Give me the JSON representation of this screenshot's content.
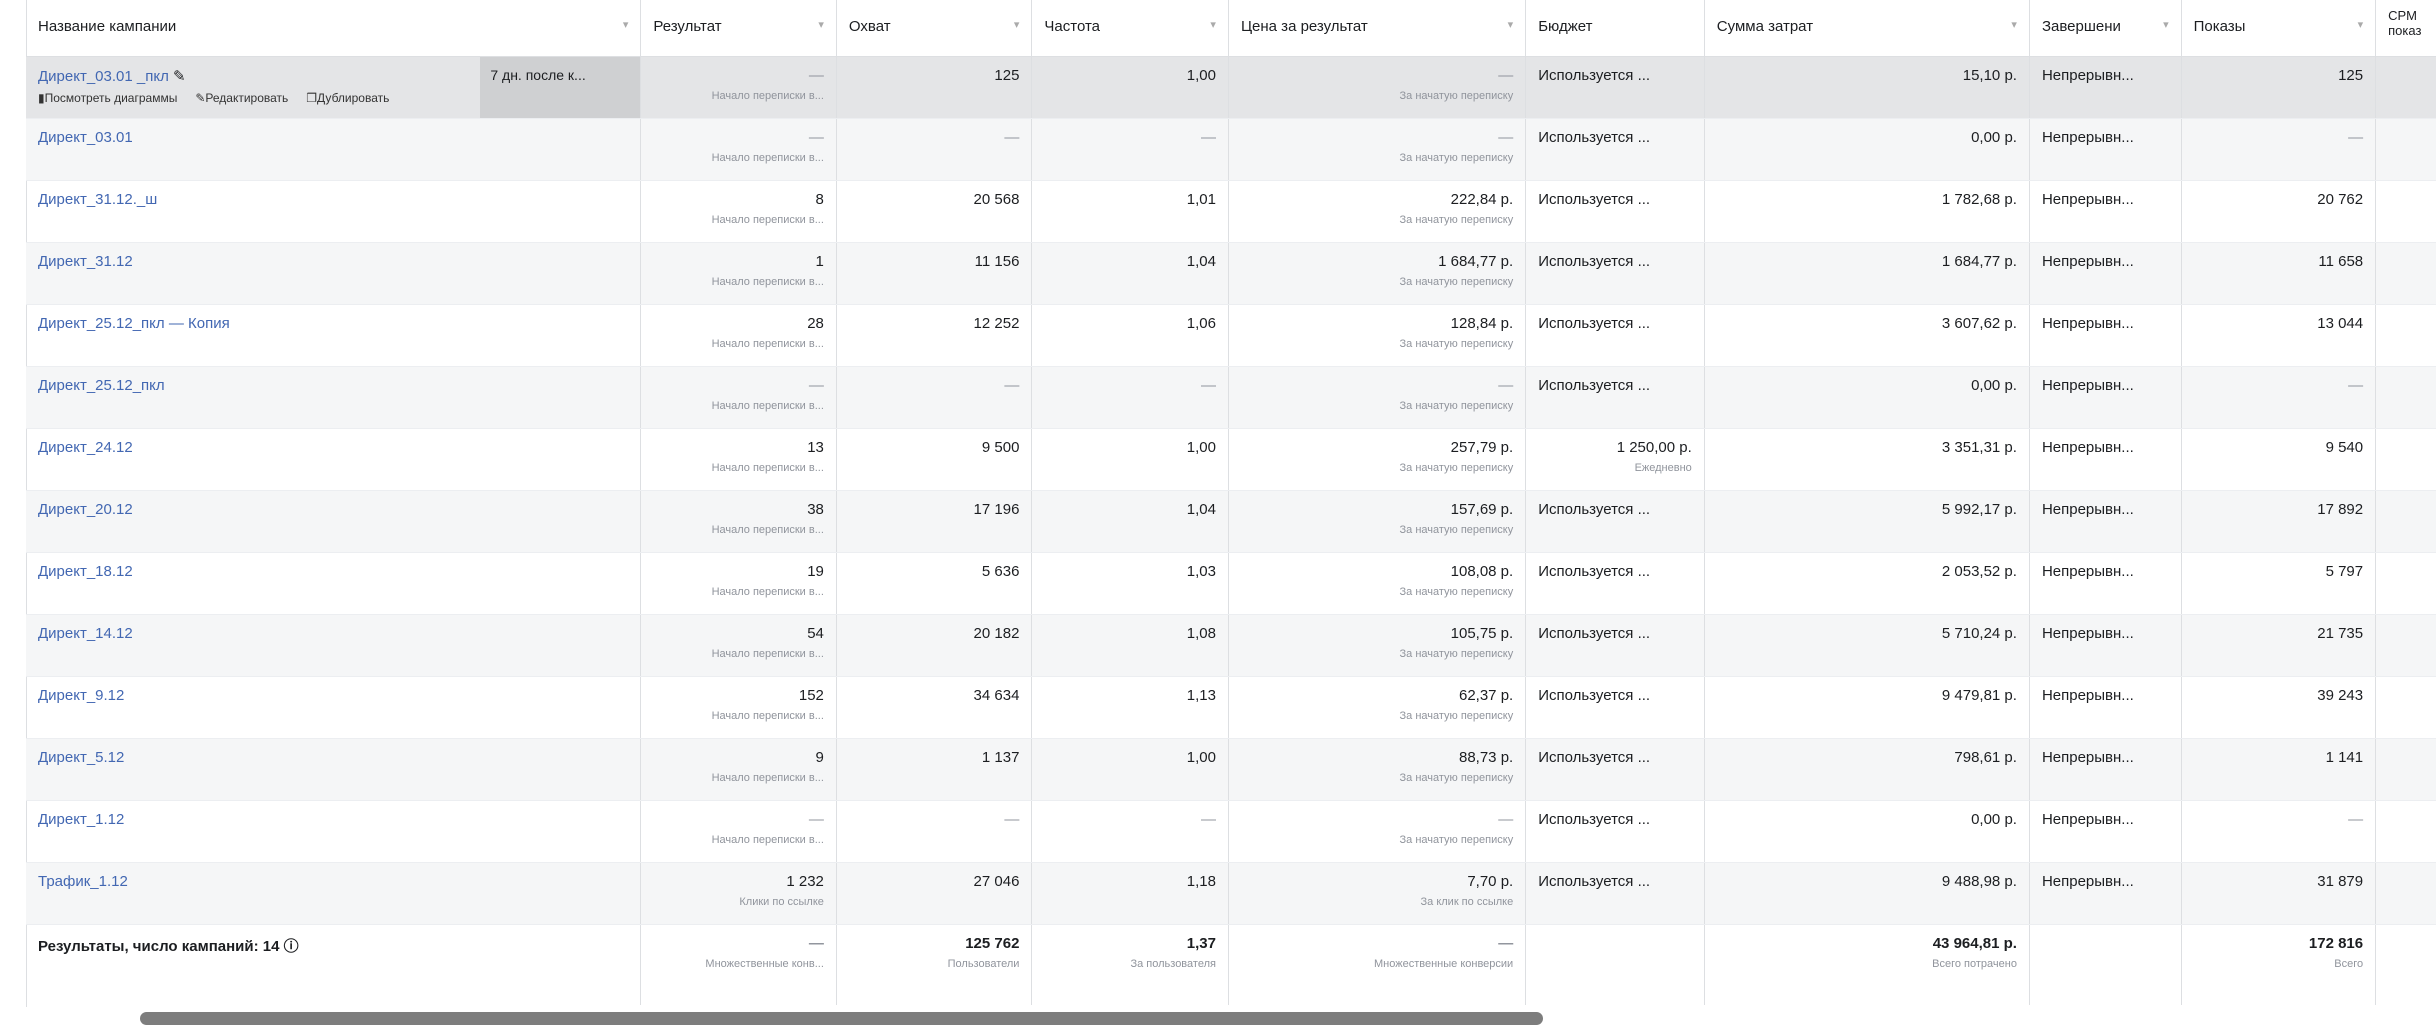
{
  "columns": [
    "Название кампании",
    "Результат",
    "Охват",
    "Частота",
    "Цена за результат",
    "Бюджет",
    "Сумма затрат",
    "Завершени",
    "Показы",
    "CPM показ"
  ],
  "hover_actions": {
    "view_charts": "Посмотреть диаграммы",
    "edit": "Редактировать",
    "duplicate": "Дублировать",
    "attribution": "7 дн. после к..."
  },
  "rows": [
    {
      "name": "Директ_03.01 _пкл",
      "result": "—",
      "result_sub": "Начало переписки в...",
      "reach": "125",
      "freq": "1,00",
      "cost": "—",
      "cost_sub": "За начатую переписку",
      "budget": "Используется ...",
      "budget_sub": "",
      "spend": "15,10 р.",
      "end": "Непрерывн...",
      "impr": "125"
    },
    {
      "name": "Директ_03.01",
      "result": "—",
      "result_sub": "Начало переписки в...",
      "reach": "—",
      "freq": "—",
      "cost": "—",
      "cost_sub": "За начатую переписку",
      "budget": "Используется ...",
      "budget_sub": "",
      "spend": "0,00 р.",
      "end": "Непрерывн...",
      "impr": "—"
    },
    {
      "name": "Директ_31.12._ш",
      "result": "8",
      "result_sub": "Начало переписки в...",
      "reach": "20 568",
      "freq": "1,01",
      "cost": "222,84 р.",
      "cost_sub": "За начатую переписку",
      "budget": "Используется ...",
      "budget_sub": "",
      "spend": "1 782,68 р.",
      "end": "Непрерывн...",
      "impr": "20 762"
    },
    {
      "name": "Директ_31.12",
      "result": "1",
      "result_sub": "Начало переписки в...",
      "reach": "11 156",
      "freq": "1,04",
      "cost": "1 684,77 р.",
      "cost_sub": "За начатую переписку",
      "budget": "Используется ...",
      "budget_sub": "",
      "spend": "1 684,77 р.",
      "end": "Непрерывн...",
      "impr": "11 658"
    },
    {
      "name": "Директ_25.12_пкл — Копия",
      "result": "28",
      "result_sub": "Начало переписки в...",
      "reach": "12 252",
      "freq": "1,06",
      "cost": "128,84 р.",
      "cost_sub": "За начатую переписку",
      "budget": "Используется ...",
      "budget_sub": "",
      "spend": "3 607,62 р.",
      "end": "Непрерывн...",
      "impr": "13 044"
    },
    {
      "name": "Директ_25.12_пкл",
      "result": "—",
      "result_sub": "Начало переписки в...",
      "reach": "—",
      "freq": "—",
      "cost": "—",
      "cost_sub": "За начатую переписку",
      "budget": "Используется ...",
      "budget_sub": "",
      "spend": "0,00 р.",
      "end": "Непрерывн...",
      "impr": "—"
    },
    {
      "name": "Директ_24.12",
      "result": "13",
      "result_sub": "Начало переписки в...",
      "reach": "9 500",
      "freq": "1,00",
      "cost": "257,79 р.",
      "cost_sub": "За начатую переписку",
      "budget": "1 250,00 р.",
      "budget_sub": "Ежедневно",
      "spend": "3 351,31 р.",
      "end": "Непрерывн...",
      "impr": "9 540"
    },
    {
      "name": "Директ_20.12",
      "result": "38",
      "result_sub": "Начало переписки в...",
      "reach": "17 196",
      "freq": "1,04",
      "cost": "157,69 р.",
      "cost_sub": "За начатую переписку",
      "budget": "Используется ...",
      "budget_sub": "",
      "spend": "5 992,17 р.",
      "end": "Непрерывн...",
      "impr": "17 892"
    },
    {
      "name": "Директ_18.12",
      "result": "19",
      "result_sub": "Начало переписки в...",
      "reach": "5 636",
      "freq": "1,03",
      "cost": "108,08 р.",
      "cost_sub": "За начатую переписку",
      "budget": "Используется ...",
      "budget_sub": "",
      "spend": "2 053,52 р.",
      "end": "Непрерывн...",
      "impr": "5 797"
    },
    {
      "name": "Директ_14.12",
      "result": "54",
      "result_sub": "Начало переписки в...",
      "reach": "20 182",
      "freq": "1,08",
      "cost": "105,75 р.",
      "cost_sub": "За начатую переписку",
      "budget": "Используется ...",
      "budget_sub": "",
      "spend": "5 710,24 р.",
      "end": "Непрерывн...",
      "impr": "21 735"
    },
    {
      "name": "Директ_9.12",
      "result": "152",
      "result_sub": "Начало переписки в...",
      "reach": "34 634",
      "freq": "1,13",
      "cost": "62,37 р.",
      "cost_sub": "За начатую переписку",
      "budget": "Используется ...",
      "budget_sub": "",
      "spend": "9 479,81 р.",
      "end": "Непрерывн...",
      "impr": "39 243"
    },
    {
      "name": "Директ_5.12",
      "result": "9",
      "result_sub": "Начало переписки в...",
      "reach": "1 137",
      "freq": "1,00",
      "cost": "88,73 р.",
      "cost_sub": "За начатую переписку",
      "budget": "Используется ...",
      "budget_sub": "",
      "spend": "798,61 р.",
      "end": "Непрерывн...",
      "impr": "1 141"
    },
    {
      "name": "Директ_1.12",
      "result": "—",
      "result_sub": "Начало переписки в...",
      "reach": "—",
      "freq": "—",
      "cost": "—",
      "cost_sub": "За начатую переписку",
      "budget": "Используется ...",
      "budget_sub": "",
      "spend": "0,00 р.",
      "end": "Непрерывн...",
      "impr": "—"
    },
    {
      "name": "Трафик_1.12",
      "result": "1 232",
      "result_sub": "Клики по ссылке",
      "reach": "27 046",
      "freq": "1,18",
      "cost": "7,70 р.",
      "cost_sub": "За клик по ссылке",
      "budget": "Используется ...",
      "budget_sub": "",
      "spend": "9 488,98 р.",
      "end": "Непрерывн...",
      "impr": "31 879"
    }
  ],
  "footer": {
    "label": "Результаты, число кампаний: 14",
    "result": "—",
    "result_sub": "Множественные конв...",
    "reach": "125 762",
    "reach_sub": "Пользователи",
    "freq": "1,37",
    "freq_sub": "За пользователя",
    "cost": "—",
    "cost_sub": "Множественные конверсии",
    "spend": "43 964,81 р.",
    "spend_sub": "Всего потрачено",
    "impr": "172 816",
    "impr_sub": "Всего"
  }
}
